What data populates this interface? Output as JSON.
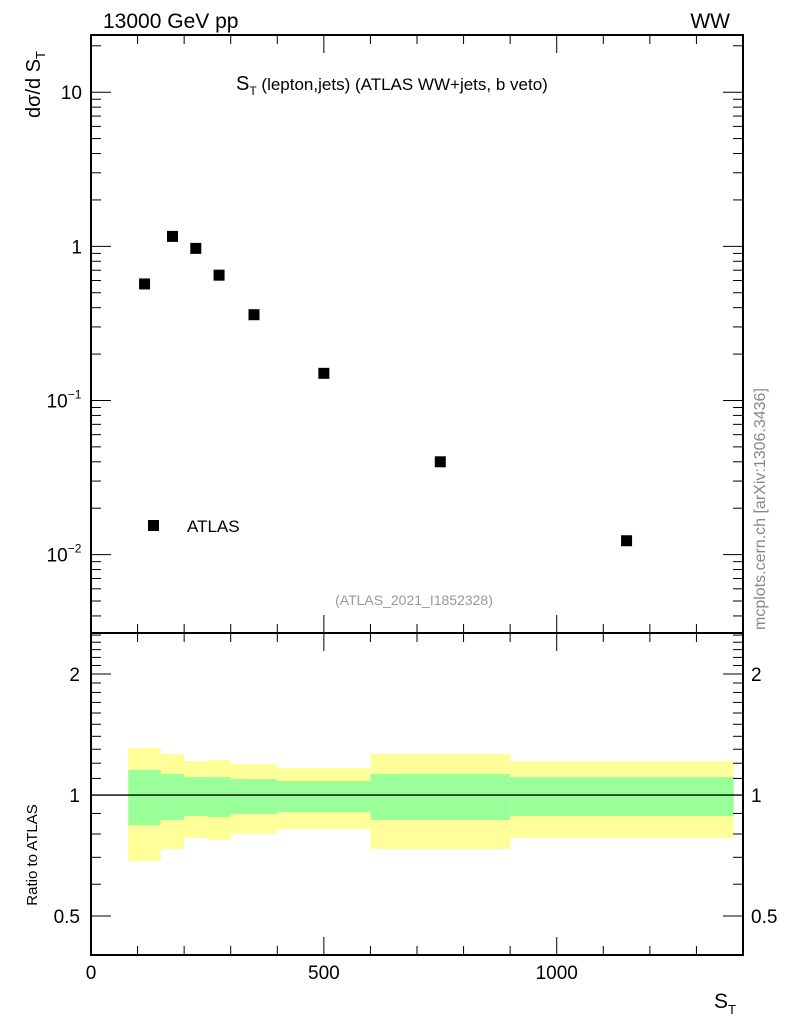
{
  "chart_data": [
    {
      "type": "scatter",
      "title": "S_T (lepton,jets) (ATLAS WW+jets, b veto)",
      "title_main": "S",
      "title_sub": "T",
      "title_rest": " (lepton,jets) (ATLAS WW+jets, b veto)",
      "header_left": "13000 GeV pp",
      "header_right": "WW",
      "ylabel": "dσ/d S_T",
      "ylabel_main": "dσ/d S",
      "ylabel_sub": "T",
      "yscale": "log",
      "xlim": [
        0,
        1400
      ],
      "ylim": [
        0.0031,
        23.5
      ],
      "yticks": [
        {
          "value": 10,
          "label": "10",
          "exp": ""
        },
        {
          "value": 1,
          "label": "1",
          "exp": ""
        },
        {
          "value": 0.1,
          "label": "10",
          "exp": "−1"
        },
        {
          "value": 0.01,
          "label": "10",
          "exp": "−2"
        }
      ],
      "series": [
        {
          "name": "ATLAS",
          "x": [
            115,
            175,
            225,
            275,
            350,
            500,
            750,
            1150
          ],
          "y": [
            0.57,
            1.16,
            0.97,
            0.65,
            0.36,
            0.15,
            0.04,
            0.0123
          ]
        }
      ],
      "legend": {
        "label": "ATLAS",
        "placement": "bottom-left"
      },
      "annotation": "(ATLAS_2021_I1852328)",
      "side_label": "mcplots.cern.ch [arXiv:1306.3436]"
    },
    {
      "type": "area",
      "ylabel": "Ratio to ATLAS",
      "xlabel": "S_T",
      "xlabel_main": "S",
      "xlabel_sub": "T",
      "yscale": "log",
      "xlim": [
        0,
        1400
      ],
      "ylim": [
        0.4,
        2.53
      ],
      "yticks": [
        {
          "value": 2,
          "label": "2"
        },
        {
          "value": 1,
          "label": "1"
        },
        {
          "value": 0.5,
          "label": "0.5"
        }
      ],
      "xticks": [
        {
          "value": 0,
          "label": "0"
        },
        {
          "value": 500,
          "label": "500"
        },
        {
          "value": 1000,
          "label": "1000"
        }
      ],
      "bin_edges": [
        80,
        150,
        200,
        250,
        300,
        400,
        600,
        900,
        1380
      ],
      "band_1sigma": {
        "color": "#99ff99",
        "low": [
          0.842,
          0.867,
          0.887,
          0.882,
          0.897,
          0.907,
          0.867,
          0.887
        ],
        "high": [
          1.154,
          1.128,
          1.108,
          1.108,
          1.096,
          1.083,
          1.128,
          1.108
        ]
      },
      "band_2sigma": {
        "color": "#ffff99",
        "low": [
          0.685,
          0.734,
          0.782,
          0.773,
          0.8,
          0.823,
          0.734,
          0.782
        ],
        "high": [
          1.31,
          1.265,
          1.215,
          1.222,
          1.194,
          1.167,
          1.265,
          1.215
        ]
      },
      "reference_line": 1
    }
  ]
}
